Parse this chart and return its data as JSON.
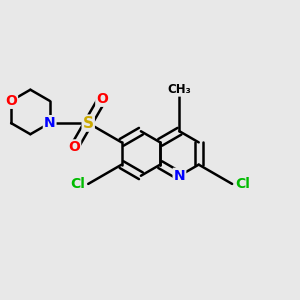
{
  "background_color": "#e8e8e8",
  "bond_color": "#000000",
  "bond_width": 1.8,
  "atom_colors": {
    "N": "#0000ff",
    "O": "#ff0000",
    "S": "#ccaa00",
    "Cl": "#00bb00"
  },
  "font_size": 10
}
